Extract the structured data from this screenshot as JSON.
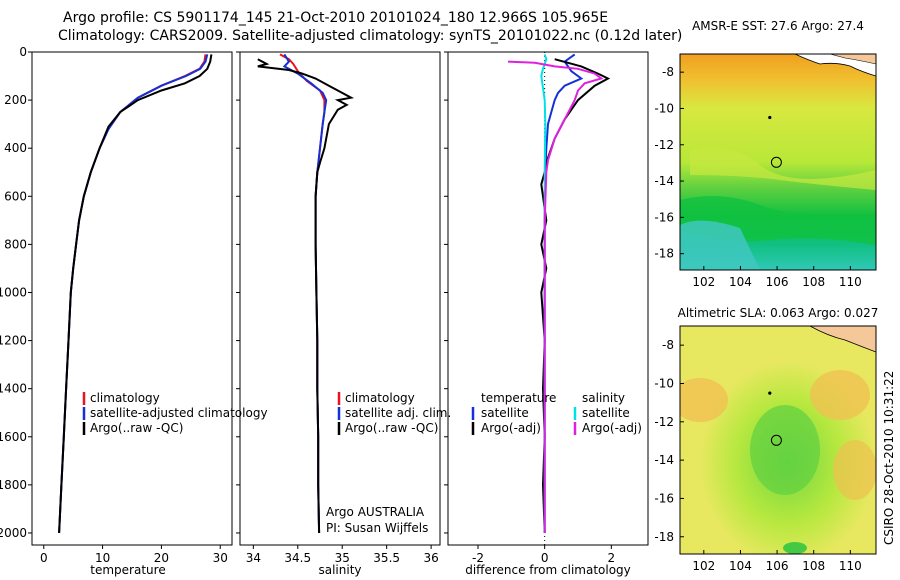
{
  "header": {
    "line1": "Argo profile: CS 5901174_145 21-Oct-2010 20101024_180 12.966S 105.965E",
    "line2": "Climatology: CARS2009. Satellite-adjusted climatology: synTS_20101022.nc (0.12d later)"
  },
  "chart_data": [
    {
      "type": "line",
      "title": "",
      "xlabel": "temperature",
      "ylabel": "depth",
      "xlim": [
        -2,
        32
      ],
      "ylim": [
        2050,
        0
      ],
      "xticks": [
        0,
        10,
        20,
        30
      ],
      "yticks": [
        0,
        200,
        400,
        600,
        800,
        1000,
        1200,
        1400,
        1600,
        1800,
        2000
      ],
      "legend": [
        "climatology",
        "satellite-adjusted climatology",
        "Argo(..raw -QC)"
      ],
      "series": [
        {
          "name": "climatology",
          "color": "#e8141e",
          "points": [
            [
              27.5,
              10
            ],
            [
              27.3,
              40
            ],
            [
              26.5,
              70
            ],
            [
              24,
              100
            ],
            [
              20,
              140
            ],
            [
              16,
              190
            ],
            [
              13,
              250
            ],
            [
              11,
              320
            ],
            [
              9.5,
              400
            ],
            [
              8,
              500
            ],
            [
              6.8,
              600
            ],
            [
              6,
              700
            ],
            [
              5.5,
              800
            ],
            [
              5,
              900
            ],
            [
              4.6,
              1000
            ],
            [
              4.2,
              1200
            ],
            [
              3.8,
              1400
            ],
            [
              3.4,
              1600
            ],
            [
              3.0,
              1800
            ],
            [
              2.6,
              2000
            ]
          ]
        },
        {
          "name": "satellite-adjusted climatology",
          "color": "#1430d8",
          "points": [
            [
              27.8,
              10
            ],
            [
              27.5,
              40
            ],
            [
              26.6,
              70
            ],
            [
              24.2,
              100
            ],
            [
              20,
              140
            ],
            [
              16,
              190
            ],
            [
              13,
              250
            ],
            [
              11,
              320
            ],
            [
              9.5,
              400
            ],
            [
              8,
              500
            ],
            [
              6.8,
              600
            ],
            [
              6,
              700
            ],
            [
              5.5,
              800
            ],
            [
              5,
              900
            ],
            [
              4.6,
              1000
            ],
            [
              4.2,
              1200
            ],
            [
              3.8,
              1400
            ],
            [
              3.4,
              1600
            ],
            [
              3.0,
              1800
            ],
            [
              2.6,
              2000
            ]
          ]
        },
        {
          "name": "Argo(..raw -QC)",
          "color": "#000000",
          "points": [
            [
              28.5,
              10
            ],
            [
              28.3,
              40
            ],
            [
              27.8,
              70
            ],
            [
              26.5,
              100
            ],
            [
              24,
              130
            ],
            [
              20,
              160
            ],
            [
              16,
              200
            ],
            [
              13,
              250
            ],
            [
              11,
              310
            ],
            [
              9.5,
              400
            ],
            [
              8,
              500
            ],
            [
              6.8,
              600
            ],
            [
              6,
              700
            ],
            [
              5.5,
              800
            ],
            [
              5,
              900
            ],
            [
              4.6,
              1000
            ],
            [
              4.2,
              1200
            ],
            [
              3.8,
              1400
            ],
            [
              3.4,
              1600
            ],
            [
              3.0,
              1800
            ],
            [
              2.6,
              2000
            ]
          ]
        }
      ]
    },
    {
      "type": "line",
      "xlabel": "salinity",
      "xlim": [
        33.85,
        36.1
      ],
      "ylim": [
        2050,
        0
      ],
      "xticks": [
        34,
        34.5,
        35,
        35.5,
        36
      ],
      "legend": [
        "climatology",
        "satellite adj. clim.",
        "Argo(..raw -QC)"
      ],
      "annotation": [
        "Argo AUSTRALIA",
        "PI: Susan Wijffels"
      ],
      "series": [
        {
          "name": "climatology",
          "color": "#e8141e",
          "points": [
            [
              34.3,
              10
            ],
            [
              34.4,
              30
            ],
            [
              34.45,
              50
            ],
            [
              34.5,
              80
            ],
            [
              34.6,
              120
            ],
            [
              34.75,
              160
            ],
            [
              34.8,
              200
            ],
            [
              34.8,
              250
            ],
            [
              34.78,
              300
            ],
            [
              34.75,
              400
            ],
            [
              34.72,
              500
            ],
            [
              34.7,
              600
            ],
            [
              34.7,
              800
            ],
            [
              34.71,
              1000
            ],
            [
              34.72,
              1200
            ],
            [
              34.72,
              1400
            ],
            [
              34.73,
              1600
            ],
            [
              34.73,
              1800
            ],
            [
              34.74,
              2000
            ]
          ]
        },
        {
          "name": "satellite adj. clim.",
          "color": "#1430d8",
          "points": [
            [
              34.35,
              10
            ],
            [
              34.4,
              40
            ],
            [
              34.35,
              60
            ],
            [
              34.5,
              90
            ],
            [
              34.65,
              130
            ],
            [
              34.78,
              170
            ],
            [
              34.82,
              200
            ],
            [
              34.8,
              250
            ],
            [
              34.78,
              300
            ],
            [
              34.75,
              400
            ],
            [
              34.72,
              500
            ],
            [
              34.7,
              600
            ],
            [
              34.7,
              800
            ],
            [
              34.71,
              1000
            ],
            [
              34.72,
              1200
            ],
            [
              34.72,
              1400
            ],
            [
              34.73,
              1600
            ],
            [
              34.73,
              1800
            ],
            [
              34.74,
              2000
            ]
          ]
        },
        {
          "name": "Argo(..raw -QC)",
          "color": "#000000",
          "points": [
            [
              34.05,
              30
            ],
            [
              34.15,
              50
            ],
            [
              34.05,
              60
            ],
            [
              34.4,
              75
            ],
            [
              34.55,
              90
            ],
            [
              34.7,
              110
            ],
            [
              34.85,
              140
            ],
            [
              35.0,
              170
            ],
            [
              35.1,
              190
            ],
            [
              34.95,
              200
            ],
            [
              35.05,
              220
            ],
            [
              34.95,
              240
            ],
            [
              34.85,
              300
            ],
            [
              34.8,
              400
            ],
            [
              34.75,
              460
            ],
            [
              34.72,
              500
            ],
            [
              34.7,
              600
            ],
            [
              34.7,
              800
            ],
            [
              34.71,
              1000
            ],
            [
              34.72,
              1200
            ],
            [
              34.72,
              1400
            ],
            [
              34.73,
              1600
            ],
            [
              34.73,
              1800
            ],
            [
              34.74,
              2000
            ]
          ]
        }
      ]
    },
    {
      "type": "line",
      "xlabel": "difference from climatology",
      "xlim": [
        -2.9,
        3.1
      ],
      "ylim": [
        2050,
        0
      ],
      "xticks": [
        -2,
        0,
        2
      ],
      "legend_headers": [
        "temperature",
        "salinity"
      ],
      "legend": [
        "satellite",
        "Argo(-adj)",
        "satellite",
        "Argo(-adj)"
      ],
      "series": [
        {
          "name": "temperature satellite",
          "color": "#1430d8",
          "points": [
            [
              0.9,
              10
            ],
            [
              0.6,
              40
            ],
            [
              0.8,
              80
            ],
            [
              1.1,
              110
            ],
            [
              0.6,
              140
            ],
            [
              0.4,
              170
            ],
            [
              0.3,
              200
            ],
            [
              0.2,
              250
            ],
            [
              0.1,
              300
            ],
            [
              0.05,
              400
            ],
            [
              0.02,
              500
            ],
            [
              0,
              700
            ],
            [
              0,
              1000
            ],
            [
              0,
              1500
            ],
            [
              0,
              2000
            ]
          ]
        },
        {
          "name": "temperature Argo(-adj)",
          "color": "#000000",
          "points": [
            [
              0.3,
              30
            ],
            [
              1.1,
              60
            ],
            [
              1.6,
              90
            ],
            [
              1.9,
              110
            ],
            [
              1.5,
              140
            ],
            [
              1.0,
              200
            ],
            [
              0.6,
              280
            ],
            [
              0.3,
              360
            ],
            [
              0.1,
              440
            ],
            [
              0,
              500
            ],
            [
              -0.1,
              550
            ],
            [
              -0.05,
              600
            ],
            [
              0.05,
              700
            ],
            [
              -0.1,
              800
            ],
            [
              0.05,
              900
            ],
            [
              -0.1,
              1000
            ],
            [
              0,
              1200
            ],
            [
              -0.05,
              1400
            ],
            [
              0,
              1600
            ],
            [
              -0.05,
              1800
            ],
            [
              0,
              2000
            ]
          ]
        },
        {
          "name": "salinity satellite",
          "color": "#00e0e8",
          "points": [
            [
              0,
              10
            ],
            [
              0.05,
              30
            ],
            [
              -0.05,
              70
            ],
            [
              -0.1,
              100
            ],
            [
              -0.05,
              150
            ],
            [
              0,
              200
            ],
            [
              0.02,
              300
            ],
            [
              0.01,
              400
            ],
            [
              0,
              500
            ],
            [
              0,
              800
            ],
            [
              0,
              1200
            ],
            [
              0,
              1600
            ],
            [
              0,
              2000
            ]
          ]
        },
        {
          "name": "salinity Argo(-adj)",
          "color": "#e020e0",
          "points": [
            [
              -1.1,
              40
            ],
            [
              -0.3,
              45
            ],
            [
              0.3,
              60
            ],
            [
              1.0,
              70
            ],
            [
              1.5,
              90
            ],
            [
              1.7,
              110
            ],
            [
              1.2,
              130
            ],
            [
              1.0,
              160
            ],
            [
              0.9,
              200
            ],
            [
              0.6,
              280
            ],
            [
              0.3,
              360
            ],
            [
              0.1,
              450
            ],
            [
              0.05,
              500
            ],
            [
              0,
              700
            ],
            [
              0,
              1000
            ],
            [
              0,
              1500
            ],
            [
              0,
              2000
            ]
          ]
        }
      ]
    }
  ],
  "labels": {
    "temperature_xlabel": "temperature",
    "salinity_xlabel": "salinity",
    "diff_xlabel": "difference from climatology",
    "temp_legend": [
      "climatology",
      "satellite-adjusted climatology",
      "Argo(..raw -QC)"
    ],
    "sal_legend": [
      "climatology",
      "satellite adj. clim.",
      "Argo(..raw -QC)"
    ],
    "diff_header_temp": "temperature",
    "diff_header_sal": "salinity",
    "diff_legend_temp": [
      "satellite",
      "Argo(-adj)"
    ],
    "diff_legend_sal": [
      "satellite",
      "Argo(-adj)"
    ],
    "argo_line1": "Argo AUSTRALIA",
    "argo_line2": "PI: Susan Wijffels"
  },
  "maps": {
    "sst_title": "AMSR-E SST: 27.6 Argo: 27.4",
    "sla_title": "Altimetric SLA: 0.063 Argo: 0.027",
    "lon_ticks": [
      "102",
      "104",
      "106",
      "108",
      "110"
    ],
    "lat_ticks": [
      "-8",
      "-10",
      "-12",
      "-14",
      "-16",
      "-18"
    ],
    "argo_location": {
      "lon": 105.965,
      "lat": -12.966
    },
    "sst_point": {
      "lon": 105.6,
      "lat": -10.5
    }
  },
  "footer": {
    "credit": "CSIRO 28-Oct-2010 10:31:22"
  }
}
